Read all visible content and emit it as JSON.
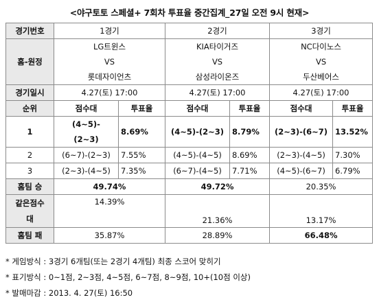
{
  "title": "<야구토토 스페셜+ 7회차 투표율 중간집계_27일 오전 9시 현재>",
  "header": {
    "label": "경기번호",
    "games": [
      "1경기",
      "2경기",
      "3경기"
    ]
  },
  "matchup": {
    "label": "홈-원정",
    "vs": "VS",
    "games": [
      {
        "home": "LG트윈스",
        "away": "롯데자이언츠"
      },
      {
        "home": "KIA타이거즈",
        "away": "삼성라이온즈"
      },
      {
        "home": "NC다이노스",
        "away": "두산베어스"
      }
    ]
  },
  "datetime": {
    "label": "경기일시",
    "values": [
      "4.27(토) 17:00",
      "4.27(토) 17:00",
      "4.27(토) 17:00"
    ]
  },
  "rank_header": {
    "rank": "순위",
    "score": "점수대",
    "rate": "투표율"
  },
  "ranks": [
    {
      "rank": "1",
      "g1_score_a": "(4~5)-",
      "g1_score_b": "(2~3)",
      "g1_rate": "8.69%",
      "g2_score": "(4~5)-(2~3)",
      "g2_rate": "8.79%",
      "g3_score": "(2~3)-(6~7)",
      "g3_rate": "13.52%"
    },
    {
      "rank": "2",
      "g1_score": "(6~7)-(2~3)",
      "g1_rate": "7.55%",
      "g2_score": "(4~5)-(4~5)",
      "g2_rate": "8.69%",
      "g3_score": "(2~3)-(4~5)",
      "g3_rate": "7.30%"
    },
    {
      "rank": "3",
      "g1_score": "(2~3)-(4~5)",
      "g1_rate": "7.35%",
      "g2_score": "(6~7)-(4~5)",
      "g2_rate": "7.71%",
      "g3_score": "(4~5)-(6~7)",
      "g3_rate": "6.79%"
    }
  ],
  "home_win": {
    "label": "홈팀 승",
    "values": [
      "49.74%",
      "49.72%",
      "20.35%"
    ]
  },
  "draw": {
    "label_a": "같은점수",
    "label_b": "대",
    "values": [
      "14.39%",
      "21.36%",
      "13.17%"
    ]
  },
  "home_loss": {
    "label": "홈팀 패",
    "values": [
      "35.87%",
      "28.89%",
      "66.48%"
    ]
  },
  "notes": [
    "* 게임방식 : 3경기 6개팀(또는 2경기 4개팀) 최종 스코어 맞히기",
    "* 표기방식 : 0~1점, 2~3점, 4~5점, 6~7점, 8~9점, 10+(10점 이상)",
    "* 발매마감 : 2013. 4. 27(토) 16:50"
  ]
}
